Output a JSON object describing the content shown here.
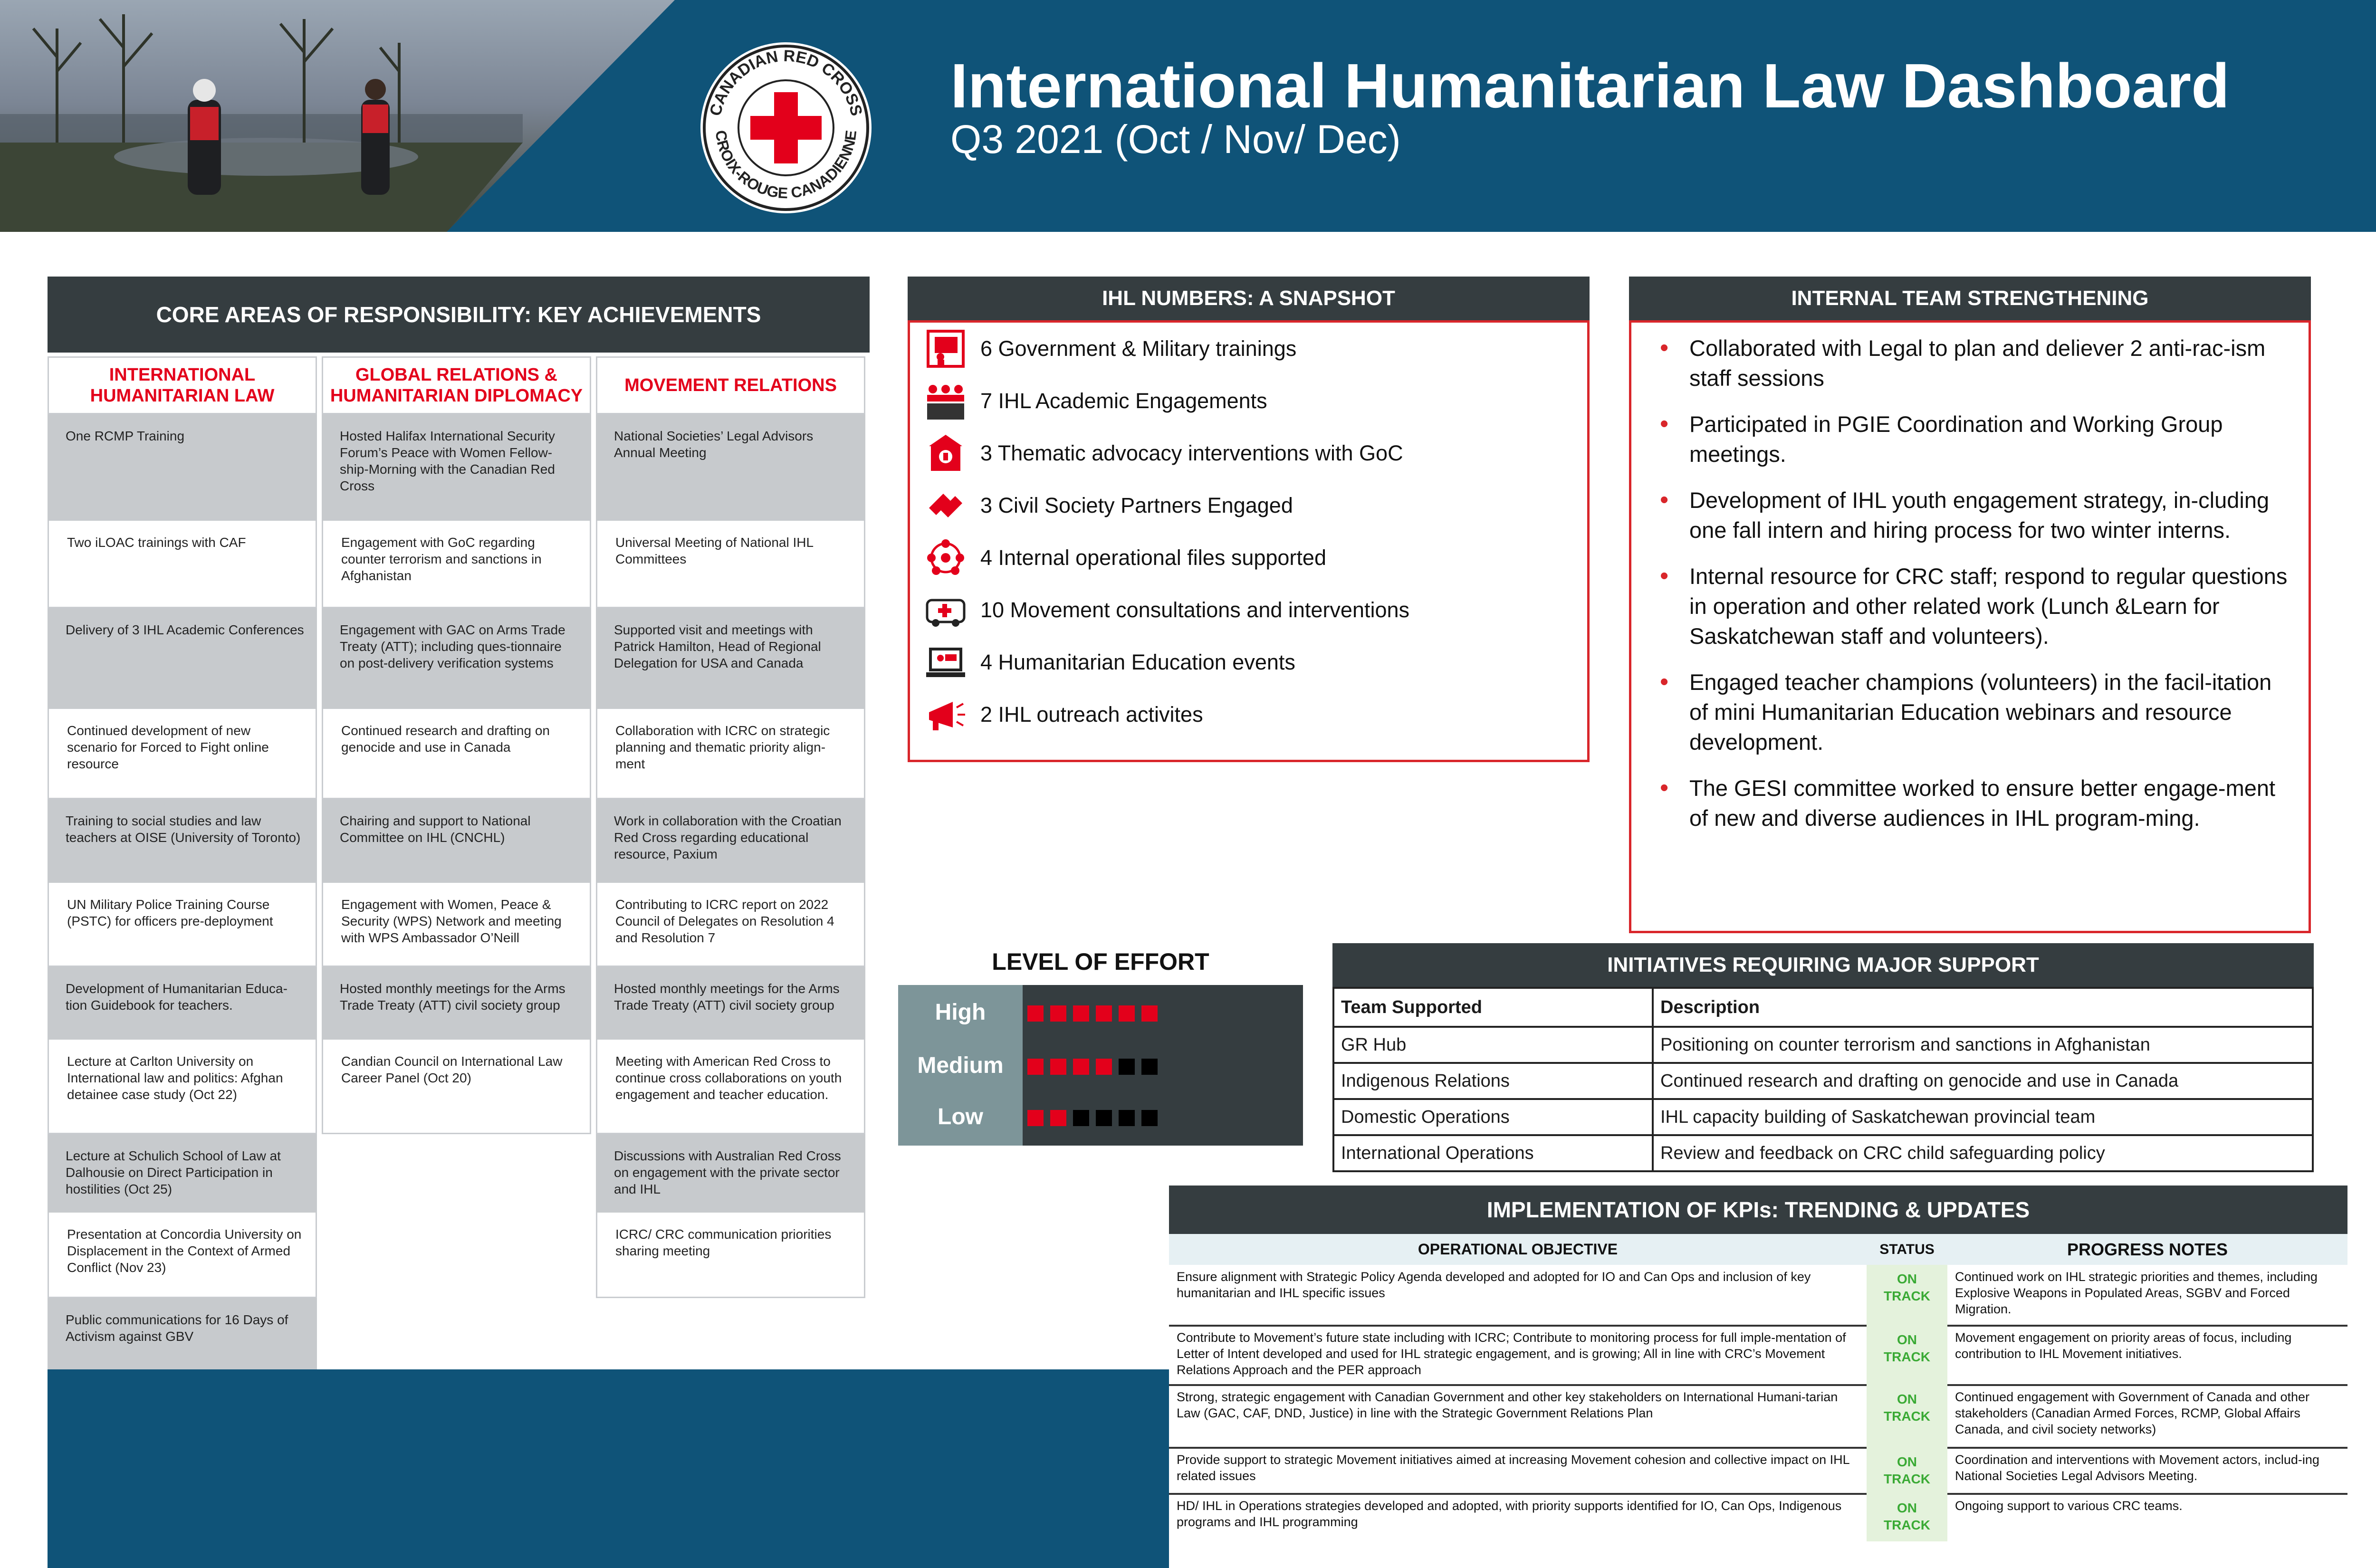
{
  "header": {
    "title": "International Humanitarian Law Dashboard",
    "subtitle": "Q3 2021 (Oct / Nov/ Dec)",
    "logo_top_text": "CANADIAN RED CROSS",
    "logo_bottom_text": "CROIX-ROUGE CANADIENNE"
  },
  "core": {
    "title": "CORE AREAS OF RESPONSIBILITY: KEY ACHIEVEMENTS",
    "columns": [
      {
        "heading": "INTERNATIONAL HUMANITARIAN LAW",
        "items": [
          "One RCMP Training",
          "Two iLOAC trainings with CAF",
          "Delivery of 3 IHL Academic Conferences",
          "Continued development of new scenario for Forced to Fight online resource",
          "Training to social studies and law teachers at OISE (University of Toronto)",
          "UN Military Police Training Course (PSTC) for officers pre-deployment",
          "Development of Humanitarian Educa-tion Guidebook for teachers.",
          "Lecture at Carlton University on International law and politics: Afghan detainee case study (Oct 22)",
          "Lecture at Schulich School of Law at Dalhousie on Direct Participation in hostilities (Oct 25)",
          "Presentation at Concordia University on Displacement in the Context of Armed Conflict (Nov 23)",
          "Public communications for 16 Days of Activism against GBV"
        ]
      },
      {
        "heading": "GLOBAL RELATIONS & HUMANITARIAN DIPLOMACY",
        "items": [
          "Hosted Halifax International Security Forum’s Peace with Women Fellow-ship-Morning with the Canadian Red Cross",
          "Engagement with GoC regarding counter terrorism and sanctions in Afghanistan",
          "Engagement  with GAC on Arms Trade Treaty (ATT); including ques-tionnaire on post-delivery verification systems",
          "Continued research and drafting on genocide and use in Canada",
          "Chairing and support to National Committee on IHL (CNCHL)",
          "Engagement with Women, Peace & Security (WPS) Network and meeting with WPS Ambassador O’Neill",
          "Hosted monthly meetings for the Arms Trade Treaty (ATT) civil society group",
          "Candian Council on International Law Career Panel (Oct 20)"
        ]
      },
      {
        "heading": "MOVEMENT RELATIONS",
        "items": [
          "National Societies’ Legal Advisors Annual Meeting",
          "Universal Meeting of National IHL Committees",
          "Supported visit and meetings with Patrick Hamilton, Head of Regional Delegation for USA and Canada",
          "Collaboration with ICRC on strategic planning and thematic priority align-ment",
          "Work in collaboration with the Croatian Red Cross regarding educational resource, Paxium",
          "Contributing to ICRC report on 2022 Council of Delegates on Resolution 4 and Resolution 7",
          "Hosted monthly meetings for the Arms Trade Treaty (ATT) civil society group",
          "Meeting with American Red Cross to continue cross collaborations on youth engagement and teacher education.",
          "Discussions with Australian Red Cross on engagement with the private sector and IHL",
          "ICRC/ CRC communication priorities sharing meeting"
        ]
      }
    ]
  },
  "numbers": {
    "title": "IHL NUMBERS: A SNAPSHOT",
    "items": [
      {
        "text": "6 Government & Military trainings",
        "icon": "presentation-icon"
      },
      {
        "text": "7 IHL Academic Engagements",
        "icon": "classroom-icon"
      },
      {
        "text": "3 Thematic advocacy interventions with GoC",
        "icon": "government-building-icon"
      },
      {
        "text": "3 Civil Society Partners Engaged",
        "icon": "partners-hands-icon"
      },
      {
        "text": "4 Internal operational files supported",
        "icon": "network-people-icon"
      },
      {
        "text": "10 Movement consultations and interventions",
        "icon": "ambulance-icon"
      },
      {
        "text": "4 Humanitarian Education events",
        "icon": "laptop-teacher-icon"
      },
      {
        "text": "2 IHL outreach activites",
        "icon": "megaphone-icon"
      }
    ]
  },
  "team": {
    "title": "INTERNAL TEAM STRENGTHENING",
    "items": [
      "Collaborated with Legal to plan and deliever 2 anti-rac-ism staff sessions",
      "Participated in PGIE Coordination and Working Group meetings.",
      "Development of IHL youth engagement strategy, in-cluding one fall intern and hiring process for two winter interns.",
      "Internal resource for CRC staff; respond to regular questions in operation and other related work (Lunch &Learn for Saskatchewan staff and volunteers).",
      "Engaged teacher champions (volunteers) in the facil-itation of mini Humanitarian Education webinars and resource development.",
      "The GESI committee worked to ensure better engage-ment of new and diverse audiences in IHL program-ming."
    ]
  },
  "effort": {
    "title": "LEVEL OF EFFORT",
    "levels": [
      {
        "label": "High",
        "filled": 6,
        "total": 6
      },
      {
        "label": "Medium",
        "filled": 4,
        "total": 6
      },
      {
        "label": "Low",
        "filled": 2,
        "total": 6
      }
    ],
    "filled_color": "#e3001b",
    "empty_color": "#000000"
  },
  "initiatives": {
    "title": "INITIATIVES REQUIRING MAJOR SUPPORT",
    "headers": [
      "Team Supported",
      "Description"
    ],
    "rows": [
      [
        "GR Hub",
        "Positioning on counter terrorism and sanctions in Afghanistan"
      ],
      [
        "Indigenous Relations",
        "Continued research and drafting on genocide and use in Canada"
      ],
      [
        "Domestic Operations",
        "IHL capacity building of Saskatchewan provincial team"
      ],
      [
        "International Operations",
        "Review and feedback on CRC child safeguarding policy"
      ]
    ]
  },
  "kpi": {
    "title": "IMPLEMENTATION OF KPIs: TRENDING & UPDATES",
    "headers": [
      "OPERATIONAL OBJECTIVE",
      "STATUS",
      "PROGRESS NOTES"
    ],
    "rows": [
      {
        "objective": " Ensure alignment with Strategic Policy Agenda developed and adopted for IO and Can Ops and inclusion of key humanitarian and IHL specific issues",
        "status": "ON TRACK",
        "notes": " Continued work on IHL strategic priorities and themes, including Explosive Weapons in Populated Areas, SGBV and Forced Migration."
      },
      {
        "objective": "Contribute to Movement’s future state including with ICRC; Contribute to monitoring process for full imple-mentation of Letter of Intent developed and used for IHL strategic engagement, and is growing; All in line with CRC’s Movement Relations Approach and the PER approach",
        "status": "ON TRACK",
        "notes": "Movement engagement on priority areas of focus, including contribution to IHL Movement initiatives."
      },
      {
        "objective": "Strong, strategic engagement with Canadian Government and other key stakeholders on International Humani-tarian Law (GAC, CAF, DND, Justice) in line with the Strategic Government Relations Plan",
        "status": "ON TRACK",
        "notes": "Continued engagement with Government of Canada and other stakeholders (Canadian Armed Forces, RCMP, Global Affairs Canada, and civil society networks)"
      },
      {
        "objective": "Provide support to strategic Movement initiatives aimed at increasing Movement cohesion and collective impact on IHL related issues",
        "status": "ON TRACK",
        "notes": "Coordination and interventions with Movement actors, includ-ing National Societies Legal Advisors Meeting."
      },
      {
        "objective": "HD/ IHL in Operations strategies developed and adopted, with priority supports identified for IO, Can Ops, Indigenous programs and IHL programming",
        "status": "ON TRACK",
        "notes": "Ongoing support to various CRC teams."
      }
    ]
  },
  "colors": {
    "brand_blue": "#0f5378",
    "red": "#e3001b",
    "panel_dark": "#353d40",
    "on_track_green": "#3aaa35"
  }
}
